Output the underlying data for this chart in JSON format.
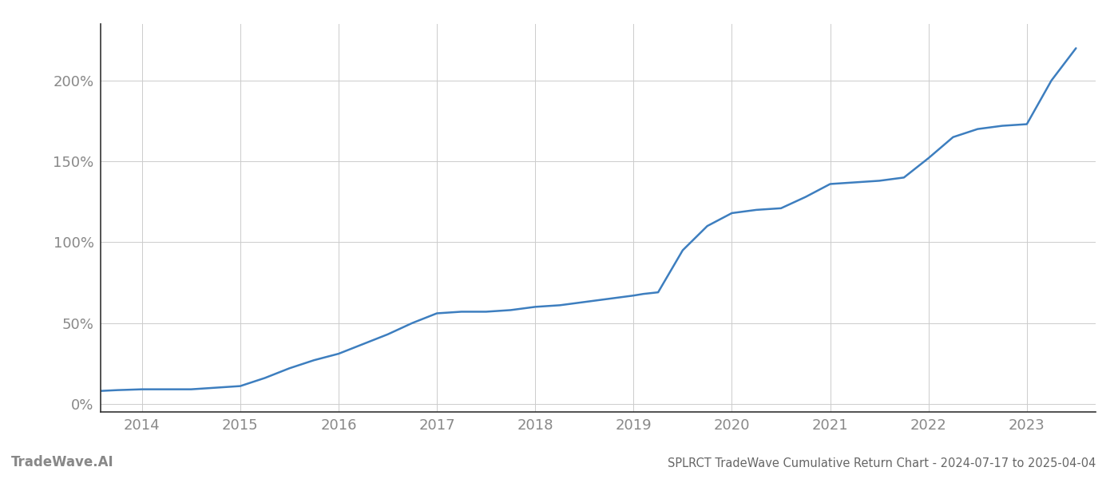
{
  "title": "SPLRCT TradeWave Cumulative Return Chart - 2024-07-17 to 2025-04-04",
  "watermark": "TradeWave.AI",
  "line_color": "#3d7ebf",
  "background_color": "#ffffff",
  "grid_color": "#cccccc",
  "x_years": [
    2013.58,
    2013.75,
    2014.0,
    2014.25,
    2014.5,
    2014.75,
    2015.0,
    2015.25,
    2015.5,
    2015.75,
    2016.0,
    2016.25,
    2016.5,
    2016.75,
    2017.0,
    2017.25,
    2017.5,
    2017.75,
    2018.0,
    2018.25,
    2018.5,
    2018.75,
    2019.0,
    2019.1,
    2019.25,
    2019.5,
    2019.75,
    2020.0,
    2020.25,
    2020.5,
    2020.75,
    2021.0,
    2021.25,
    2021.5,
    2021.75,
    2022.0,
    2022.25,
    2022.5,
    2022.75,
    2023.0,
    2023.25,
    2023.5
  ],
  "y_values": [
    8,
    8.5,
    9,
    9,
    9,
    10,
    11,
    16,
    22,
    27,
    31,
    37,
    43,
    50,
    56,
    57,
    57,
    58,
    60,
    61,
    63,
    65,
    67,
    68,
    69,
    95,
    110,
    118,
    120,
    121,
    128,
    136,
    137,
    138,
    140,
    152,
    165,
    170,
    172,
    173,
    200,
    220
  ],
  "xtick_labels": [
    "2014",
    "2015",
    "2016",
    "2017",
    "2018",
    "2019",
    "2020",
    "2021",
    "2022",
    "2023"
  ],
  "xtick_positions": [
    2014,
    2015,
    2016,
    2017,
    2018,
    2019,
    2020,
    2021,
    2022,
    2023
  ],
  "ytick_values": [
    0,
    50,
    100,
    150,
    200
  ],
  "ytick_labels": [
    "0%",
    "50%",
    "100%",
    "150%",
    "200%"
  ],
  "xlim": [
    2013.58,
    2023.7
  ],
  "ylim": [
    -5,
    235
  ],
  "line_width": 1.8,
  "title_fontsize": 10.5,
  "tick_fontsize": 13,
  "watermark_fontsize": 12,
  "title_color": "#666666",
  "tick_color": "#888888",
  "left_spine_color": "#333333",
  "bottom_spine_color": "#333333",
  "grid_linewidth": 0.7
}
